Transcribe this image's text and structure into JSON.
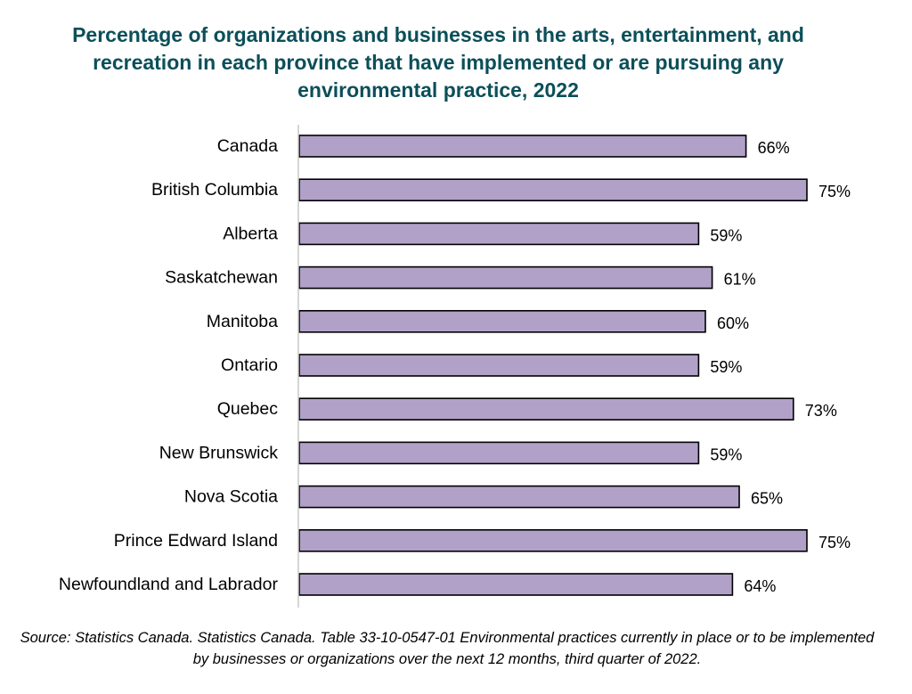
{
  "chart_data": {
    "type": "bar",
    "orientation": "horizontal",
    "title": "Percentage of organizations and businesses in the arts, entertainment, and recreation in each province that have implemented or are pursuing any environmental practice, 2022",
    "categories": [
      "Canada",
      "British Columbia",
      "Alberta",
      "Saskatchewan",
      "Manitoba",
      "Ontario",
      "Quebec",
      "New Brunswick",
      "Nova Scotia",
      "Prince Edward Island",
      "Newfoundland and Labrador"
    ],
    "values": [
      66,
      75,
      59,
      61,
      60,
      59,
      73,
      59,
      65,
      75,
      64
    ],
    "data_labels": [
      "66%",
      "75%",
      "59%",
      "61%",
      "60%",
      "59%",
      "73%",
      "59%",
      "65%",
      "75%",
      "64%"
    ],
    "xlim": [
      0,
      100
    ],
    "grid": false,
    "legend": "none",
    "bar_color": "#b1a1c8",
    "bar_edge_color": "#000000",
    "source": "Source: Statistics Canada. Statistics Canada. Table 33-10-0547-01  Environmental practices currently in place or to be implemented by businesses or organizations over the next 12 months, third quarter of 2022."
  }
}
